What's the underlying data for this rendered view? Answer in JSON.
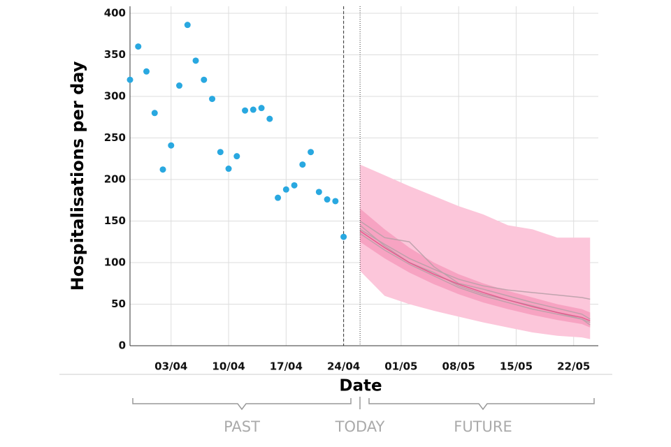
{
  "chart_data": {
    "type": "scatter",
    "y_label": "Hospitalisations per day",
    "x_label": "Date",
    "x": [
      "29/03",
      "30/03",
      "31/03",
      "01/04",
      "02/04",
      "03/04",
      "04/04",
      "05/04",
      "06/04",
      "07/04",
      "08/04",
      "09/04",
      "10/04",
      "11/04",
      "12/04",
      "13/04",
      "14/04",
      "15/04",
      "16/04",
      "17/04",
      "18/04",
      "19/04",
      "20/04",
      "21/04",
      "22/04",
      "23/04",
      "24/04"
    ],
    "values": [
      320,
      360,
      330,
      280,
      212,
      241,
      313,
      386,
      343,
      320,
      297,
      233,
      213,
      228,
      283,
      284,
      286,
      273,
      178,
      188,
      193,
      218,
      233,
      185,
      176,
      174,
      131
    ],
    "color": "#29a8e0",
    "forecast": {
      "x": [
        "26/04",
        "29/04",
        "02/05",
        "05/05",
        "08/05",
        "11/05",
        "14/05",
        "17/05",
        "20/05",
        "23/05",
        "24/05"
      ],
      "bands": [
        {
          "color": "#fcc6da",
          "upper": [
            218,
            205,
            192,
            180,
            168,
            158,
            145,
            140,
            130,
            130,
            130
          ],
          "lower": [
            90,
            60,
            50,
            42,
            35,
            28,
            22,
            16,
            12,
            10,
            8
          ]
        },
        {
          "color": "#f7a3c2",
          "upper": [
            165,
            140,
            118,
            100,
            86,
            75,
            66,
            58,
            50,
            44,
            40
          ],
          "lower": [
            125,
            105,
            88,
            74,
            62,
            52,
            44,
            37,
            31,
            26,
            22
          ]
        }
      ],
      "lines": [
        {
          "color": "#b9a0a8",
          "values": [
            140,
            122,
            105,
            92,
            80,
            72,
            67,
            64,
            61,
            58,
            56
          ]
        },
        {
          "color": "#b9a0a8",
          "values": [
            150,
            130,
            125,
            95,
            75,
            68,
            60,
            52,
            45,
            38,
            32
          ]
        },
        {
          "color": "#b9a0a8",
          "values": [
            135,
            115,
            98,
            84,
            70,
            60,
            52,
            44,
            38,
            32,
            28
          ]
        },
        {
          "color": "#b9a0a8",
          "values": [
            145,
            120,
            100,
            88,
            72,
            62,
            55,
            48,
            40,
            32,
            25
          ]
        },
        {
          "color": "#e0558a",
          "values": [
            138,
            118,
            100,
            86,
            74,
            64,
            55,
            47,
            40,
            34,
            30
          ]
        }
      ]
    },
    "vlines": [
      {
        "x": "24/04",
        "style": "dashed"
      },
      {
        "x": "26/04",
        "style": "dotted"
      }
    ],
    "xlim": [
      "29/03",
      "25/05"
    ],
    "xticks": [
      "03/04",
      "10/04",
      "17/04",
      "24/04",
      "01/05",
      "08/05",
      "15/05",
      "22/05"
    ],
    "ylim": [
      0,
      400
    ],
    "yticks": [
      0,
      50,
      100,
      150,
      200,
      250,
      300,
      350,
      400
    ],
    "grid": true,
    "phases": [
      "PAST",
      "TODAY",
      "FUTURE"
    ]
  }
}
